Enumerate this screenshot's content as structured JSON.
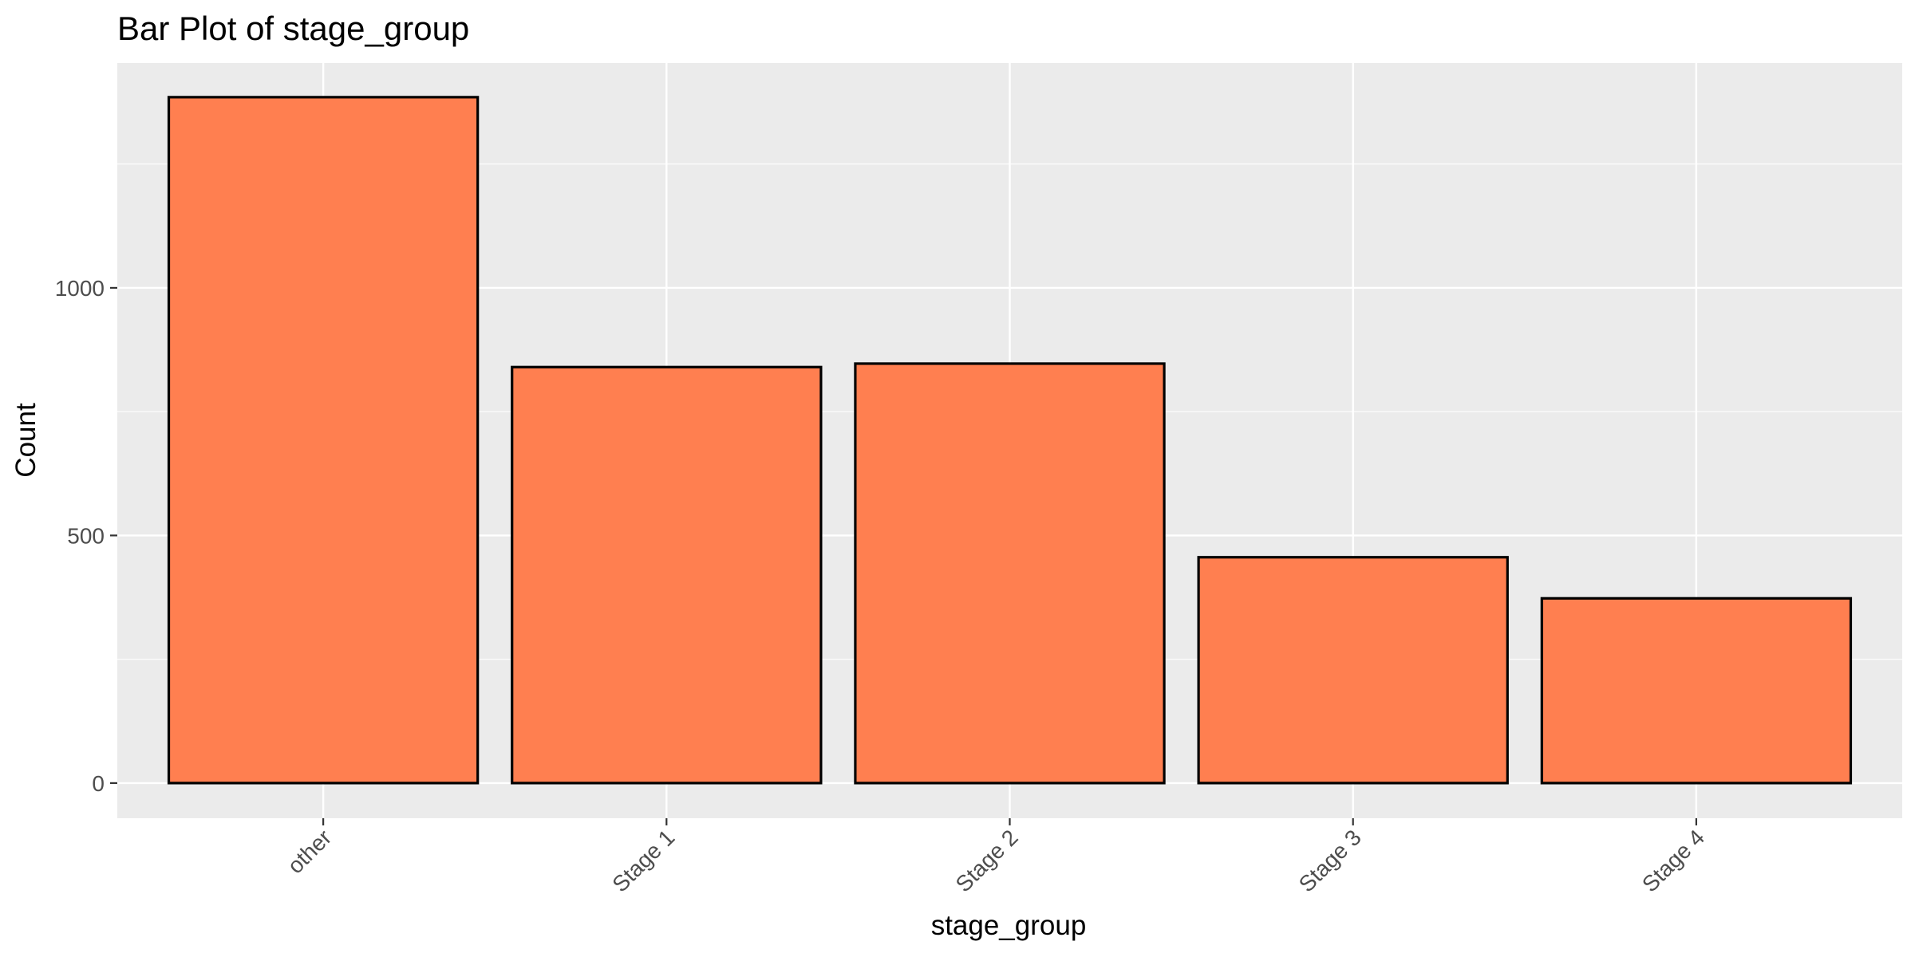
{
  "chart_data": {
    "type": "bar",
    "title": "Bar Plot of stage_group",
    "xlabel": "stage_group",
    "ylabel": "Count",
    "categories": [
      "other",
      "Stage 1",
      "Stage 2",
      "Stage 3",
      "Stage 4"
    ],
    "values": [
      1385,
      840,
      847,
      456,
      373
    ],
    "ylim": [
      -71,
      1454
    ],
    "yticks": [
      0,
      500,
      1000
    ],
    "ytick_labels": [
      "0",
      "500",
      "1000"
    ],
    "y_minor_ticks": [
      250,
      750,
      1250
    ],
    "grid": true,
    "legend": "none",
    "colors": {
      "bar_fill": "#FF7F50",
      "bar_stroke": "#000000",
      "panel_background": "#EBEBEB",
      "grid_line": "#FFFFFF",
      "tick_mark": "#333333",
      "tick_label": "#4D4D4D",
      "text": "#000000"
    }
  }
}
